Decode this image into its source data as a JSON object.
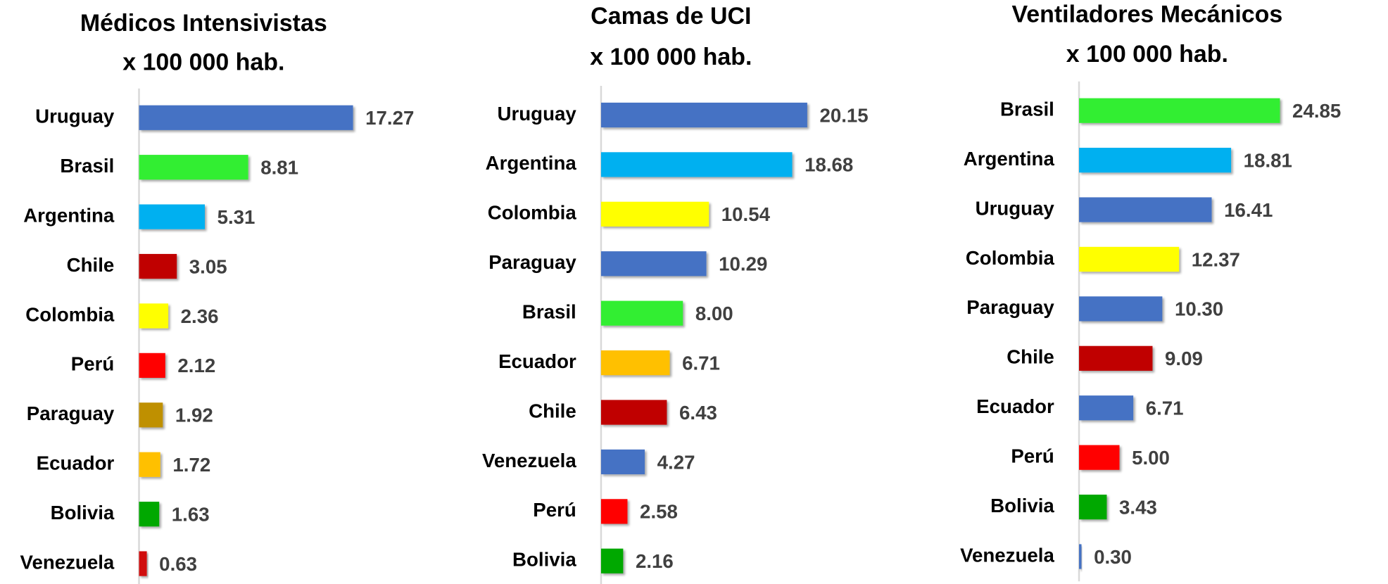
{
  "chart_data": [
    {
      "type": "bar",
      "orientation": "horizontal",
      "title": "Médicos Intensivistas",
      "subtitle": "x 100 000 hab.",
      "categories": [
        "Uruguay",
        "Brasil",
        "Argentina",
        "Chile",
        "Colombia",
        "Perú",
        "Paraguay",
        "Ecuador",
        "Bolivia",
        "Venezuela"
      ],
      "values": [
        17.27,
        8.81,
        5.31,
        3.05,
        2.36,
        2.12,
        1.92,
        1.72,
        1.63,
        0.63
      ],
      "value_labels": [
        "17.27",
        "8.81",
        "5.31",
        "3.05",
        "2.36",
        "2.12",
        "1.92",
        "1.72",
        "1.63",
        "0.63"
      ],
      "colors": [
        "#4472c4",
        "#33ee33",
        "#00b0f0",
        "#c00000",
        "#ffff00",
        "#ff0000",
        "#bf9000",
        "#ffc000",
        "#00a800",
        "#d01010"
      ],
      "xlim": [
        0,
        20
      ]
    },
    {
      "type": "bar",
      "orientation": "horizontal",
      "title": "Camas de UCI",
      "subtitle": "x 100 000 hab.",
      "categories": [
        "Uruguay",
        "Argentina",
        "Colombia",
        "Paraguay",
        "Brasil",
        "Ecuador",
        "Chile",
        "Venezuela",
        "Perú",
        "Bolivia"
      ],
      "values": [
        20.15,
        18.68,
        10.54,
        10.29,
        8.0,
        6.71,
        6.43,
        4.27,
        2.58,
        2.16
      ],
      "value_labels": [
        "20.15",
        "18.68",
        "10.54",
        "10.29",
        "8.00",
        "6.71",
        "6.43",
        "4.27",
        "2.58",
        "2.16"
      ],
      "colors": [
        "#4472c4",
        "#00b0f0",
        "#ffff00",
        "#4472c4",
        "#33ee33",
        "#ffc000",
        "#c00000",
        "#4472c4",
        "#ff0000",
        "#00a800"
      ],
      "xlim": [
        0,
        25
      ]
    },
    {
      "type": "bar",
      "orientation": "horizontal",
      "title": "Ventiladores Mecánicos",
      "subtitle": "x 100 000 hab.",
      "categories": [
        "Brasil",
        "Argentina",
        "Uruguay",
        "Colombia",
        "Paraguay",
        "Chile",
        "Ecuador",
        "Perú",
        "Bolivia",
        "Venezuela"
      ],
      "values": [
        24.85,
        18.81,
        16.41,
        12.37,
        10.3,
        9.09,
        6.71,
        5.0,
        3.43,
        0.3
      ],
      "value_labels": [
        "24.85",
        "18.81",
        "16.41",
        "12.37",
        "10.30",
        "9.09",
        "6.71",
        "5.00",
        "3.43",
        "0.30"
      ],
      "colors": [
        "#33ee33",
        "#00b0f0",
        "#4472c4",
        "#ffff00",
        "#4472c4",
        "#c00000",
        "#4472c4",
        "#ff0000",
        "#00a800",
        "#4472c4"
      ],
      "xlim": [
        0,
        30
      ]
    }
  ]
}
